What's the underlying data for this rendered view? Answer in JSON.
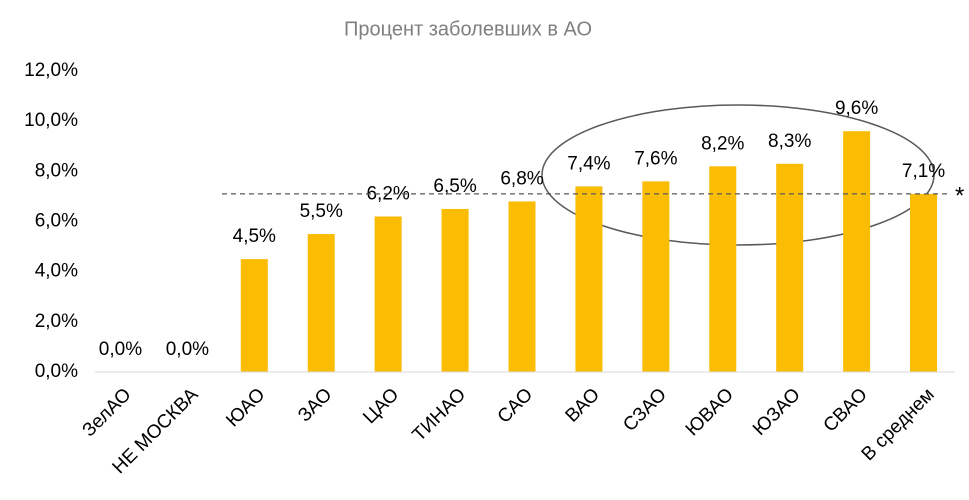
{
  "chart_data": {
    "type": "bar",
    "title": "Процент заболевших в АО",
    "categories": [
      "ЗелАО",
      "НЕ МОСКВА",
      "ЮАО",
      "ЗАО",
      "ЦАО",
      "ТИНАО",
      "САО",
      "ВАО",
      "СЗАО",
      "ЮВАО",
      "ЮЗАО",
      "СВАО",
      "В среднем"
    ],
    "values": [
      0,
      0,
      4.5,
      5.5,
      6.2,
      6.5,
      6.8,
      7.4,
      7.6,
      8.2,
      8.3,
      9.6,
      7.1
    ],
    "value_labels": [
      "0,0%",
      "0,0%",
      "4,5%",
      "5,5%",
      "6,2%",
      "6,5%",
      "6,8%",
      "7,4%",
      "7,6%",
      "8,2%",
      "8,3%",
      "9,6%",
      "7,1%"
    ],
    "color": "#fbbc04",
    "ylim": [
      0,
      12
    ],
    "yticks": [
      {
        "value": 0,
        "label": "0,0%"
      },
      {
        "value": 2,
        "label": "2,0%"
      },
      {
        "value": 4,
        "label": "4,0%"
      },
      {
        "value": 6,
        "label": "6,0%"
      },
      {
        "value": 8,
        "label": "8,0%"
      },
      {
        "value": 10,
        "label": "10,0%"
      },
      {
        "value": 12,
        "label": "12,0%"
      }
    ],
    "grid": false,
    "reference_line": {
      "value": 7.1,
      "label": "*"
    }
  }
}
